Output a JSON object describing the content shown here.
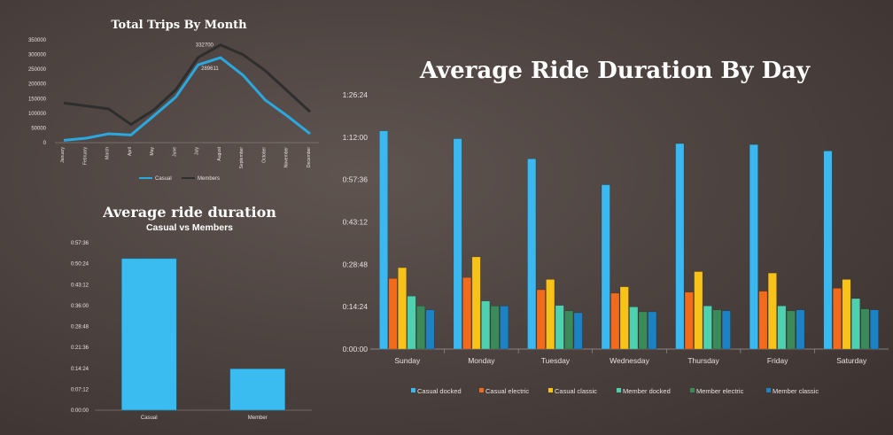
{
  "chart_data": [
    {
      "type": "line",
      "title": "Total Trips By Month",
      "categories": [
        "January",
        "February",
        "March",
        "April",
        "May",
        "June",
        "July",
        "August",
        "September",
        "October",
        "November",
        "December"
      ],
      "series": [
        {
          "name": "Casual",
          "color": "#2aa8e0",
          "values": [
            8000,
            15000,
            30000,
            26000,
            90000,
            155000,
            265000,
            289611,
            230000,
            145000,
            90000,
            30000
          ]
        },
        {
          "name": "Members",
          "color": "#2e2e2e",
          "values": [
            135000,
            125000,
            115000,
            62000,
            110000,
            180000,
            290000,
            332700,
            300000,
            245000,
            175000,
            105000
          ]
        }
      ],
      "data_labels": [
        "332700",
        "289611"
      ],
      "ylim": [
        0,
        350000
      ],
      "yticks": [
        "0",
        "50000",
        "100000",
        "150000",
        "200000",
        "250000",
        "300000",
        "350000"
      ],
      "legend": "bottom"
    },
    {
      "type": "bar",
      "title": "Average ride duration",
      "subtitle": "Casual vs Members",
      "categories": [
        "Casual",
        "Member"
      ],
      "values_seconds": [
        3130,
        855
      ],
      "color": "#3bbcf0",
      "ylim_seconds": [
        0,
        3456
      ],
      "yticks": [
        "0:00:00",
        "0:07:12",
        "0:14:24",
        "0:21:36",
        "0:28:48",
        "0:36:00",
        "0:43:12",
        "0:50:24",
        "0:57:36"
      ]
    },
    {
      "type": "bar",
      "title": "Average Ride Duration By Day",
      "categories": [
        "Sunday",
        "Monday",
        "Tuesday",
        "Wednesday",
        "Thursday",
        "Friday",
        "Saturday"
      ],
      "series": [
        {
          "name": "Casual docked",
          "color": "#3ab8ef",
          "values_seconds": [
            4450,
            4290,
            3880,
            3350,
            4190,
            4170,
            4040
          ]
        },
        {
          "name": "Casual electric",
          "color": "#f26b1d",
          "values_seconds": [
            1440,
            1460,
            1210,
            1140,
            1160,
            1180,
            1240
          ]
        },
        {
          "name": "Casual classic",
          "color": "#f7c21a",
          "values_seconds": [
            1660,
            1880,
            1420,
            1270,
            1580,
            1550,
            1420
          ]
        },
        {
          "name": "Member docked",
          "color": "#4fd1b0",
          "values_seconds": [
            1080,
            980,
            890,
            860,
            880,
            880,
            1030
          ]
        },
        {
          "name": "Member electric",
          "color": "#3c8a5a",
          "values_seconds": [
            880,
            880,
            780,
            760,
            800,
            780,
            820
          ]
        },
        {
          "name": "Member classic",
          "color": "#1d82c4",
          "values_seconds": [
            800,
            880,
            740,
            760,
            780,
            800,
            800
          ]
        }
      ],
      "ylim_seconds": [
        0,
        5184
      ],
      "yticks": [
        "0:00:00",
        "0:14:24",
        "0:28:48",
        "0:43:12",
        "0:57:36",
        "1:12:00",
        "1:26:24"
      ],
      "legend": "bottom"
    }
  ]
}
